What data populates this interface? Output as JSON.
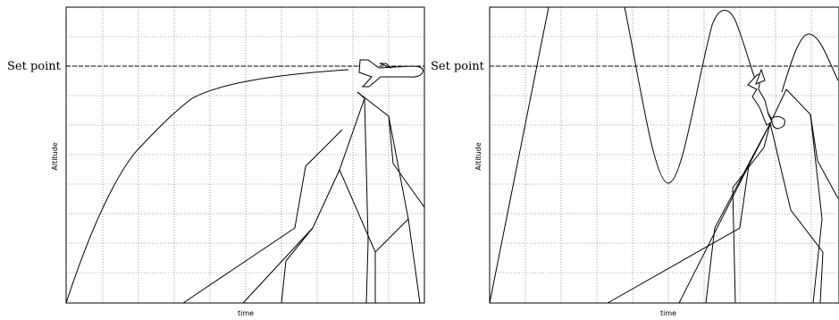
{
  "panels": [
    {
      "setpoint_label": "Set point",
      "ylabel": "Altitude",
      "xlabel": "time"
    },
    {
      "setpoint_label": "Set point",
      "ylabel": "Altitude",
      "xlabel": "time"
    }
  ]
}
